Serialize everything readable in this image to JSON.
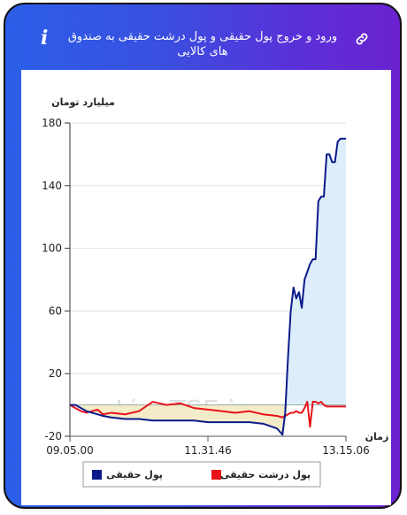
{
  "header": {
    "title": "ورود و خروج پول حقیقی و پول درشت حقیقی به صندوق های کالایی",
    "info_icon": "info-icon",
    "link_icon": "link-icon"
  },
  "colors": {
    "gradient_start": "#2b5fe9",
    "gradient_end": "#6a22cf",
    "series_real": "#0a1a8a",
    "series_big": "#e8121a",
    "fill_positive": "#ddeefa",
    "fill_negative": "#f3ecc8"
  },
  "chart_data": {
    "type": "line",
    "ylabel": "میلیارد تومان",
    "xlabel": "زمان",
    "ylim": [
      -20,
      180
    ],
    "yticks": [
      -20,
      20,
      60,
      100,
      140,
      180
    ],
    "xticks": [
      "09.05.00",
      "11.31.46",
      "13.15.06"
    ],
    "grid": "horizontal",
    "watermark": "LiveTSE.ir",
    "legend": {
      "position": "bottom",
      "items": [
        "پول حقیقی",
        "پول درشت حقیقی"
      ]
    },
    "x": [
      0,
      2,
      4,
      6,
      8,
      10,
      12,
      15,
      20,
      25,
      30,
      35,
      40,
      45,
      50,
      55,
      60,
      65,
      70,
      75,
      77,
      78,
      79,
      80,
      81,
      82,
      83,
      84,
      85,
      86,
      87,
      88,
      89,
      90,
      91,
      92,
      93,
      94,
      95,
      96,
      97,
      98,
      100
    ],
    "series": [
      {
        "name": "پول حقیقی",
        "values": [
          0,
          0,
          -2,
          -4,
          -5,
          -6,
          -7,
          -8,
          -9,
          -9,
          -10,
          -10,
          -10,
          -10,
          -11,
          -11,
          -11,
          -11,
          -12,
          -15,
          -19,
          -5,
          30,
          60,
          75,
          68,
          72,
          62,
          80,
          85,
          90,
          93,
          93,
          130,
          133,
          133,
          160,
          160,
          155,
          155,
          168,
          170,
          170
        ]
      },
      {
        "name": "پول درشت حقیقی",
        "values": [
          0,
          -2,
          -4,
          -5,
          -4,
          -3,
          -6,
          -5,
          -6,
          -4,
          2,
          0,
          1,
          -2,
          -3,
          -4,
          -5,
          -4,
          -6,
          -7,
          -8,
          -7,
          -6,
          -5,
          -5,
          -4,
          -5,
          -5,
          -2,
          2,
          -14,
          2,
          2,
          1,
          2,
          0,
          -1,
          -1,
          -1,
          -1,
          -1,
          -1,
          -1
        ]
      }
    ]
  }
}
